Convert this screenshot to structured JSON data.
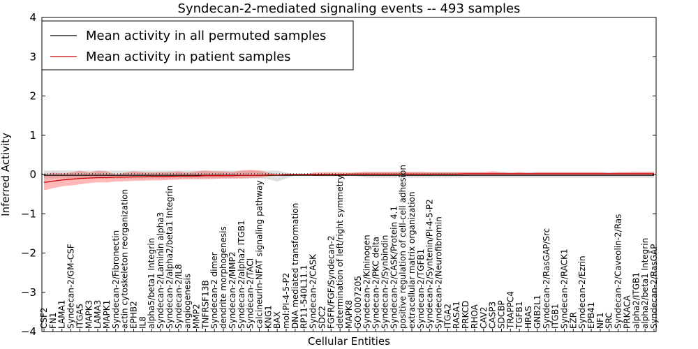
{
  "chart_data": {
    "type": "line",
    "title": "Syndecan-2-mediated signaling events -- 493 samples",
    "xlabel": "Cellular Entities",
    "ylabel": "Inferred Activity",
    "ylim": [
      -4,
      4
    ],
    "yticks": [
      -4,
      -3,
      -2,
      -1,
      0,
      1,
      2,
      3,
      4
    ],
    "legend_position": "top-left",
    "categories": [
      "CSF2",
      "FN1",
      "LAMA1",
      "Syndecan-2/GM-CSF",
      "ITGA5",
      "MAPK3",
      "LAMA3",
      "MAPK1",
      "Syndecan-2/Fibronectin",
      "actin cytoskeleton reorganization",
      "EPHB2",
      "IL8",
      "alpha5/beta1 Integrin",
      "Syndecan-2/Laminin alpha3",
      "Syndecan-2/alpha2/beta1 Integrin",
      "Syndecan-2/IL8",
      "angiogenesis",
      "MMP2",
      "TNFRSF13B",
      "Syndecan-2 dimer",
      "dendrite morphogenesis",
      "Syndecan-2/MMP2",
      "Syndecan-2/alpha2 ITGB1",
      "Syndecan-2/TACI",
      "calcineurin-NFAT signaling pathway",
      "KNG1",
      "BAX",
      "mol:PI-4-5-P2",
      "DNA mediated transformation",
      "RP11-540L11.1",
      "Syndecan-2/CASK",
      "SDC2",
      "FGFR/FGF/Syndecan-2",
      "determination of left/right symmetry",
      "MAPK8",
      "GO:0007205",
      "Syndecan-2/Kininogen",
      "Syndecan-2/PKC delta",
      "Syndecan-2/Synbindin",
      "Syndecan-2/CASK/Protein 4.1",
      "positive regulation of cell-cell adhesion",
      "extracellular matrix organization",
      "Syndecan-2/TGFB1",
      "Syndecan-2/Syntenin/PI-4-5-P2",
      "Syndecan-2/Neurofibromin",
      "ITGA2",
      "RASA1",
      "PRKCD",
      "RHOA",
      "CAV2",
      "CASP3",
      "SDCBP",
      "TRAPPC4",
      "TGFB1",
      "HRAS",
      "GNB2L1",
      "Syndecan-2/RasGAP/Src",
      "ITGB1",
      "Syndecan-2/RACK1",
      "EZR",
      "Syndecan-2/Ezrin",
      "EPB41",
      "NF1",
      "SRC",
      "Syndecan-2/Caveolin-2/Ras",
      "PRKACA",
      "alpha2/ITGB1",
      "alpha2/beta1 Integrin",
      "Syndecan-2/RasGAP"
    ],
    "series": [
      {
        "name": "Mean activity in all permuted samples",
        "color": "#000000",
        "values": [
          -0.02,
          -0.02,
          -0.02,
          -0.02,
          -0.02,
          -0.02,
          -0.02,
          -0.02,
          -0.02,
          -0.02,
          -0.02,
          -0.02,
          -0.02,
          -0.02,
          -0.02,
          -0.02,
          -0.02,
          -0.02,
          -0.02,
          -0.02,
          -0.02,
          -0.02,
          -0.02,
          -0.02,
          -0.02,
          -0.02,
          -0.02,
          -0.02,
          -0.02,
          -0.02,
          -0.02,
          -0.02,
          -0.02,
          -0.02,
          -0.02,
          -0.02,
          -0.02,
          -0.02,
          -0.02,
          -0.02,
          -0.02,
          -0.02,
          -0.02,
          -0.02,
          -0.02,
          -0.02,
          -0.02,
          -0.02,
          -0.02,
          -0.02,
          -0.02,
          -0.02,
          -0.02,
          -0.02,
          -0.02,
          -0.02,
          -0.02,
          -0.02,
          -0.02,
          -0.02,
          -0.02,
          -0.02,
          -0.02,
          -0.02,
          -0.02,
          -0.02,
          -0.02,
          -0.02,
          -0.02
        ],
        "band_upper": [
          0.1,
          0.1,
          0.1,
          0.1,
          0.1,
          0.1,
          0.1,
          0.1,
          0.1,
          0.1,
          0.1,
          0.1,
          0.1,
          0.1,
          0.1,
          0.1,
          0.1,
          0.1,
          0.1,
          0.1,
          0.1,
          0.1,
          0.1,
          0.1,
          0.1,
          0.1,
          0.1,
          0.05,
          0.02,
          0.02,
          0.02,
          0.02,
          0.02,
          0.02,
          0.02,
          0.05,
          0.06,
          0.06,
          0.06,
          0.06,
          0.06,
          0.06,
          0.06,
          0.06,
          0.06,
          0.06,
          0.06,
          0.06,
          0.06,
          0.06,
          0.06,
          0.06,
          0.06,
          0.06,
          0.06,
          0.06,
          0.06,
          0.06,
          0.06,
          0.06,
          0.06,
          0.06,
          0.06,
          0.06,
          0.06,
          0.06,
          0.06,
          0.06,
          0.06
        ],
        "band_lower": [
          -0.1,
          -0.1,
          -0.1,
          -0.1,
          -0.1,
          -0.1,
          -0.1,
          -0.1,
          -0.1,
          -0.1,
          -0.1,
          -0.1,
          -0.1,
          -0.1,
          -0.1,
          -0.1,
          -0.1,
          -0.1,
          -0.1,
          -0.1,
          -0.1,
          -0.1,
          -0.1,
          -0.1,
          -0.1,
          -0.12,
          -0.18,
          -0.1,
          -0.02,
          -0.02,
          -0.02,
          -0.02,
          -0.02,
          -0.02,
          -0.02,
          -0.05,
          -0.08,
          -0.08,
          -0.08,
          -0.08,
          -0.08,
          -0.08,
          -0.08,
          -0.08,
          -0.08,
          -0.08,
          -0.08,
          -0.08,
          -0.08,
          -0.08,
          -0.08,
          -0.08,
          -0.08,
          -0.08,
          -0.08,
          -0.08,
          -0.08,
          -0.08,
          -0.08,
          -0.08,
          -0.08,
          -0.08,
          -0.08,
          -0.08,
          -0.08,
          -0.08,
          -0.08,
          -0.08,
          -0.08
        ]
      },
      {
        "name": "Mean activity in patient samples",
        "color": "#cc0000",
        "values": [
          -0.2,
          -0.17,
          -0.14,
          -0.12,
          -0.1,
          -0.09,
          -0.08,
          -0.08,
          -0.07,
          -0.07,
          -0.06,
          -0.06,
          -0.05,
          -0.05,
          -0.05,
          -0.04,
          -0.04,
          -0.04,
          -0.03,
          -0.03,
          -0.03,
          -0.03,
          -0.02,
          -0.02,
          -0.02,
          -0.01,
          -0.01,
          0.0,
          0.0,
          0.0,
          0.0,
          0.0,
          0.0,
          0.0,
          0.01,
          0.01,
          0.01,
          0.01,
          0.01,
          0.01,
          0.01,
          0.01,
          0.01,
          0.01,
          0.01,
          0.01,
          0.01,
          0.02,
          0.02,
          0.02,
          0.02,
          0.02,
          0.02,
          0.02,
          0.02,
          0.02,
          0.02,
          0.02,
          0.02,
          0.02,
          0.02,
          0.02,
          0.02,
          0.02,
          0.02,
          0.02,
          0.02,
          0.02,
          0.02
        ],
        "band_upper": [
          0.0,
          0.05,
          0.03,
          0.05,
          0.1,
          0.05,
          0.1,
          0.08,
          0.0,
          0.05,
          0.08,
          0.06,
          0.05,
          0.06,
          0.06,
          0.08,
          0.05,
          0.08,
          0.1,
          0.08,
          0.08,
          0.06,
          0.1,
          0.12,
          0.1,
          0.05,
          0.0,
          0.0,
          0.0,
          0.0,
          0.05,
          0.06,
          0.06,
          0.06,
          0.05,
          0.06,
          0.07,
          0.07,
          0.07,
          0.07,
          0.07,
          0.07,
          0.07,
          0.06,
          0.06,
          0.06,
          0.06,
          0.06,
          0.06,
          0.06,
          0.08,
          0.06,
          0.04,
          0.06,
          0.04,
          0.06,
          0.06,
          0.06,
          0.06,
          0.06,
          0.06,
          0.06,
          0.06,
          0.04,
          0.06,
          0.06,
          0.07,
          0.07,
          0.07
        ],
        "band_lower": [
          -0.4,
          -0.35,
          -0.3,
          -0.28,
          -0.25,
          -0.22,
          -0.2,
          -0.2,
          -0.18,
          -0.17,
          -0.16,
          -0.16,
          -0.15,
          -0.15,
          -0.14,
          -0.13,
          -0.12,
          -0.12,
          -0.12,
          -0.11,
          -0.1,
          -0.1,
          -0.1,
          -0.09,
          -0.08,
          -0.05,
          -0.02,
          0.0,
          0.0,
          0.0,
          -0.03,
          -0.04,
          -0.04,
          -0.04,
          -0.03,
          -0.03,
          -0.03,
          -0.03,
          -0.03,
          -0.03,
          -0.03,
          -0.03,
          -0.03,
          -0.03,
          -0.02,
          -0.02,
          -0.02,
          -0.02,
          -0.02,
          -0.02,
          -0.02,
          -0.02,
          -0.02,
          -0.02,
          -0.02,
          -0.02,
          -0.02,
          -0.02,
          -0.02,
          -0.02,
          -0.02,
          -0.02,
          -0.02,
          -0.02,
          -0.02,
          -0.02,
          -0.02,
          -0.02,
          -0.02
        ]
      }
    ]
  }
}
